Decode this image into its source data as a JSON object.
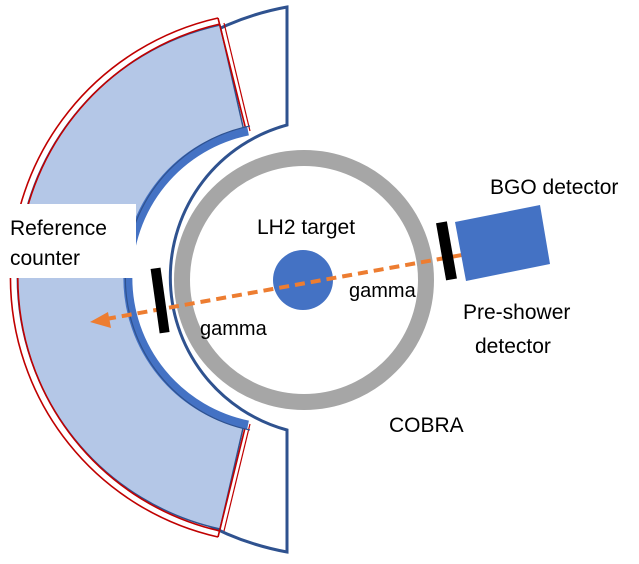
{
  "labels": {
    "reference_counter": "Reference\ncounter",
    "lh2_target": "LH2 target",
    "bgo_detector": "BGO detector",
    "pre_shower_line1": "Pre-shower",
    "pre_shower_line2": "detector",
    "gamma_right": "gamma",
    "gamma_left": "gamma",
    "cobra": "COBRA"
  },
  "colors": {
    "outline_navy": "#2f528f",
    "fill_light_blue": "#b4c7e7",
    "detector_blue": "#4472c4",
    "ring_gray": "#a6a6a6",
    "arrow_orange": "#ed7d31",
    "red_line": "#c00000",
    "black": "#000000"
  }
}
